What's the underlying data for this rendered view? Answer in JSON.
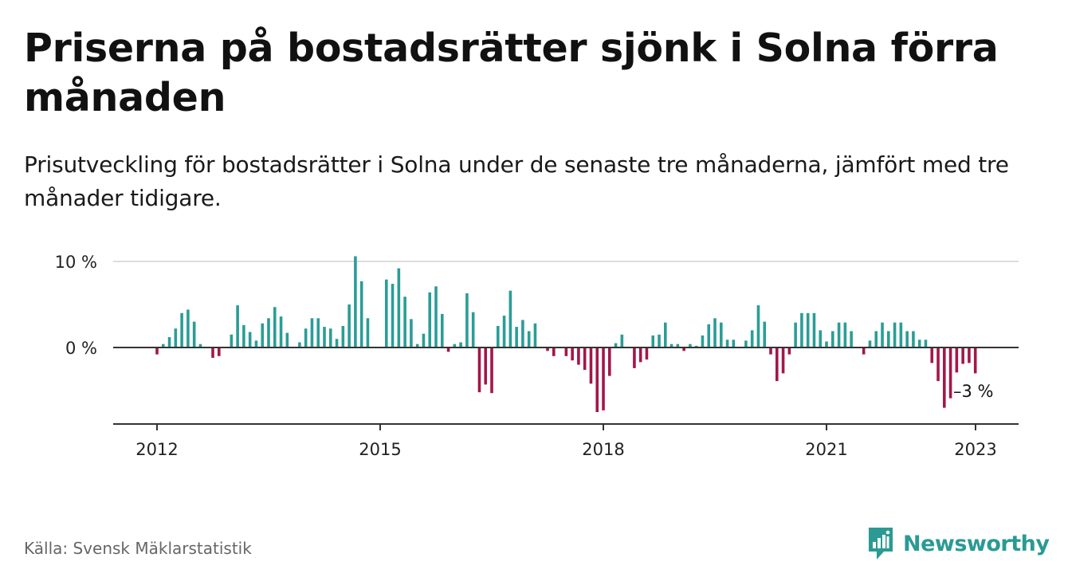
{
  "header": {
    "title": "Priserna på bostadsrätter sjönk i Solna förra månaden",
    "subtitle": "Prisutveckling för bostadsrätter i Solna under de senaste tre månaderna, jämfört med tre månader tidigare."
  },
  "footer": {
    "source": "Källa: Svensk Mäklarstatistik",
    "brand": "Newsworthy"
  },
  "colors": {
    "positive": "#2a9d96",
    "negative": "#a3164a",
    "brand": "#2a9a93",
    "grid": "#dddddd",
    "axis": "#333333"
  },
  "chart_data": {
    "type": "bar",
    "x_start": "2012-01",
    "x_tick_labels": [
      "2012",
      "2015",
      "2018",
      "2021",
      "2023"
    ],
    "y_tick_labels": [
      "10 %",
      "0 %"
    ],
    "ylim": [
      -9,
      10.5
    ],
    "grid": true,
    "annotation": {
      "text": "–3 %"
    },
    "values": [
      -0.8,
      0.4,
      1.2,
      2.2,
      4.0,
      4.4,
      3.0,
      0.4,
      0,
      -1.2,
      -1.0,
      0,
      1.5,
      4.9,
      2.6,
      1.8,
      0.8,
      2.8,
      3.4,
      4.7,
      3.6,
      1.7,
      0,
      0.6,
      2.2,
      3.4,
      3.4,
      2.4,
      2.2,
      1.0,
      2.5,
      5.0,
      10.6,
      7.7,
      3.4,
      0,
      0,
      7.9,
      7.4,
      9.2,
      5.9,
      3.3,
      0.4,
      1.6,
      6.4,
      7.1,
      3.9,
      -0.5,
      0.4,
      0.6,
      6.3,
      4.1,
      -5.2,
      -4.3,
      -5.3,
      2.5,
      3.7,
      6.6,
      2.4,
      3.2,
      1.9,
      2.8,
      0,
      -0.4,
      -1.0,
      0,
      -1.0,
      -1.5,
      -2.0,
      -2.6,
      -4.2,
      -7.5,
      -7.3,
      -3.3,
      0.5,
      1.5,
      0,
      -2.4,
      -1.7,
      -1.4,
      1.4,
      1.5,
      2.9,
      0.4,
      0.4,
      -0.4,
      0.4,
      0.2,
      1.4,
      2.7,
      3.4,
      2.9,
      0.9,
      0.9,
      0,
      0.8,
      2.0,
      4.9,
      3.0,
      -0.8,
      -3.9,
      -3.0,
      -0.8,
      2.9,
      4.0,
      4.0,
      4.0,
      2.0,
      0.7,
      1.9,
      2.9,
      2.9,
      1.9,
      0,
      -0.8,
      0.8,
      1.9,
      2.9,
      1.9,
      2.9,
      2.9,
      1.9,
      1.9,
      0.9,
      0.9,
      -1.8,
      -3.9,
      -7.0,
      -5.9,
      -2.9,
      -1.9,
      -1.8,
      -3.0
    ]
  }
}
